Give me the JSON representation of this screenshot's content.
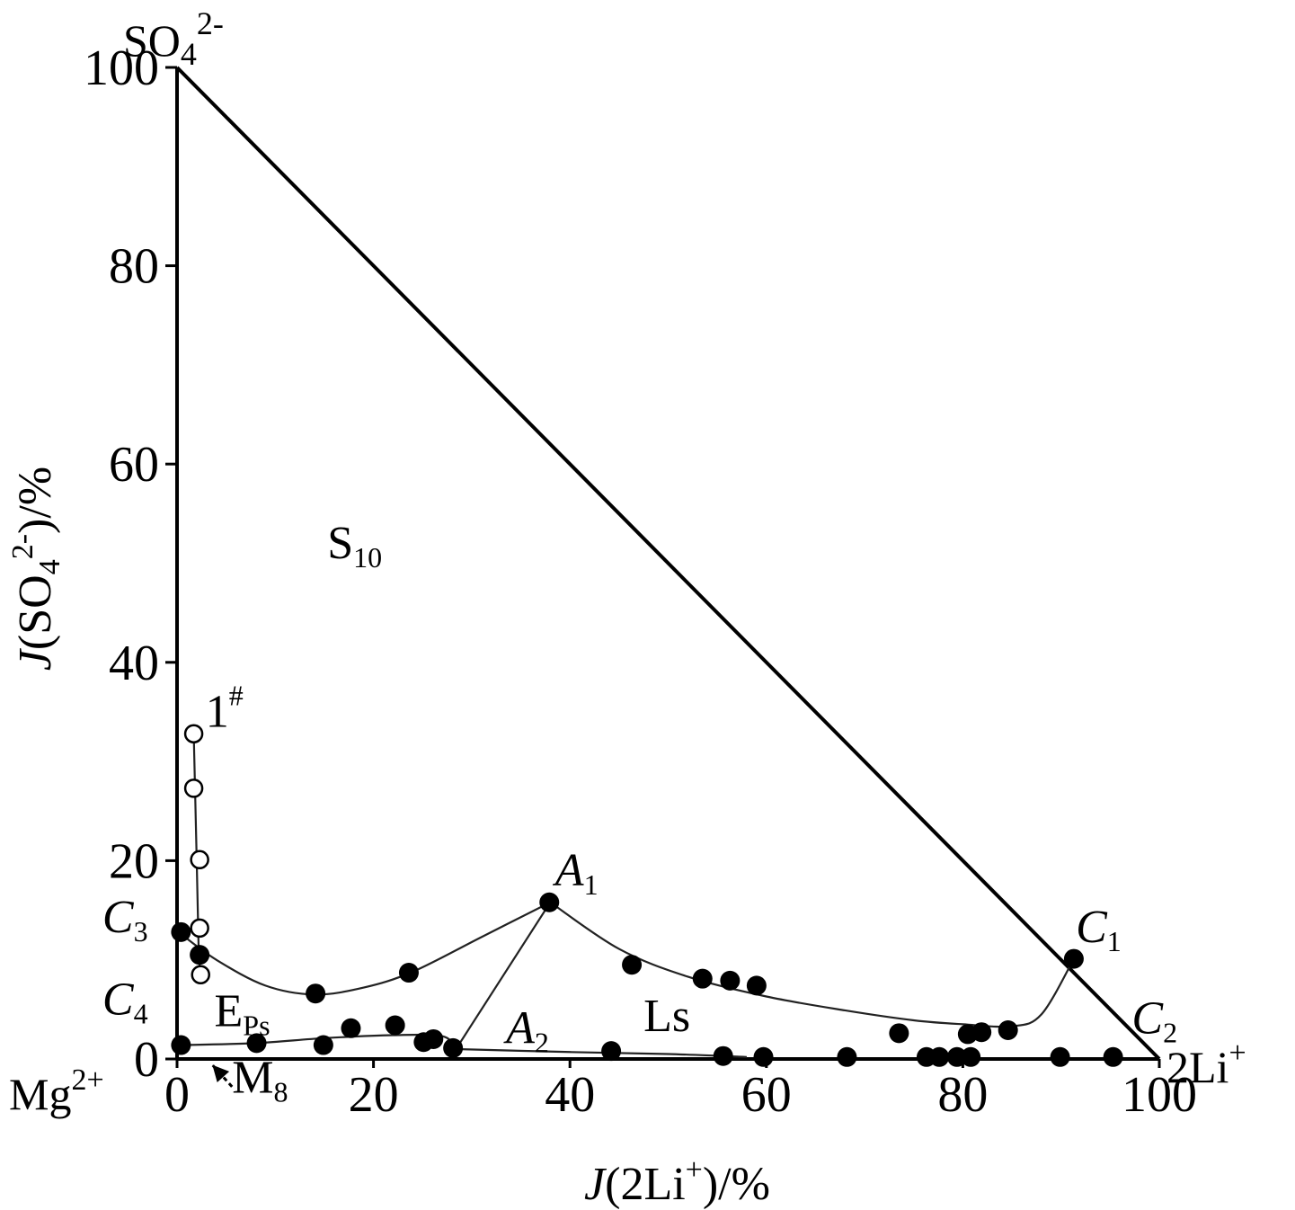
{
  "chart_data": {
    "type": "scatter",
    "xlabel": {
      "prefix": "J",
      "text": "(2Li",
      "sup": "+",
      "suffix": ")/%"
    },
    "ylabel": {
      "prefix": "J",
      "text": "(SO",
      "sub": "4",
      "sup": "2-",
      "suffix": ")/%"
    },
    "xlim": [
      0,
      100
    ],
    "ylim": [
      0,
      100
    ],
    "xticks": [
      "0",
      "20",
      "40",
      "60",
      "80",
      "100"
    ],
    "yticks": [
      "0",
      "20",
      "40",
      "60",
      "80",
      "100"
    ],
    "corners": {
      "top": {
        "base": "SO",
        "sub": "4",
        "sup": "2-"
      },
      "left": {
        "base": "Mg",
        "sup": "2+"
      },
      "right": {
        "base": "2Li",
        "sup": "+"
      }
    },
    "annotations": [
      {
        "id": "A1",
        "base": "A",
        "sub": "1",
        "italic": true,
        "x": 38.5,
        "y": 17.5
      },
      {
        "id": "A2",
        "base": "A",
        "sub": "2",
        "italic": true,
        "x": 33.5,
        "y": 1.6
      },
      {
        "id": "C1",
        "base": "C",
        "sub": "1",
        "italic": true,
        "x": 91.5,
        "y": 11.8
      },
      {
        "id": "C2",
        "base": "C",
        "sub": "2",
        "italic": true,
        "x": 97.2,
        "y": 2.6
      },
      {
        "id": "C3",
        "base": "C",
        "sub": "3",
        "italic": true,
        "x": -7.6,
        "y": 12.8
      },
      {
        "id": "C4",
        "base": "C",
        "sub": "4",
        "italic": true,
        "x": -7.6,
        "y": 4.5
      },
      {
        "id": "S10",
        "base": "S",
        "sub": "10",
        "italic": false,
        "x": 15.3,
        "y": 50.5
      },
      {
        "id": "EPs",
        "base": "E",
        "sub": "Ps",
        "italic": false,
        "x": 3.8,
        "y": 3.3
      },
      {
        "id": "Ls",
        "base": "Ls",
        "sub": "",
        "italic": false,
        "x": 47.5,
        "y": 2.8
      },
      {
        "id": "one",
        "base": "1",
        "sup": "#",
        "italic": false,
        "x": 2.9,
        "y": 33.5
      },
      {
        "id": "M8",
        "base": "M",
        "sub": "8",
        "italic": false,
        "x": 5.6,
        "y": -3.4
      }
    ],
    "series": [
      {
        "marker": "open-circle",
        "points": [
          [
            1.7,
            32.8
          ],
          [
            1.7,
            27.3
          ],
          [
            2.3,
            20.1
          ],
          [
            2.3,
            13.2
          ],
          [
            2.4,
            8.5
          ]
        ]
      },
      {
        "marker": "filled-circle",
        "points": [
          [
            0.4,
            12.8
          ],
          [
            2.3,
            10.5
          ],
          [
            14.1,
            6.6
          ],
          [
            23.6,
            8.7
          ],
          [
            37.9,
            15.8
          ],
          [
            46.3,
            9.5
          ],
          [
            53.5,
            8.1
          ],
          [
            56.3,
            7.9
          ],
          [
            59.0,
            7.4
          ],
          [
            91.3,
            10.1
          ],
          [
            73.5,
            2.6
          ],
          [
            80.5,
            2.5
          ],
          [
            81.9,
            2.7
          ],
          [
            84.6,
            2.9
          ],
          [
            0.4,
            1.4
          ],
          [
            8.1,
            1.6
          ],
          [
            14.9,
            1.4
          ],
          [
            17.7,
            3.1
          ],
          [
            22.2,
            3.4
          ],
          [
            25.1,
            1.7
          ],
          [
            26.1,
            2.0
          ],
          [
            28.1,
            1.1
          ],
          [
            44.2,
            0.8
          ],
          [
            55.6,
            0.3
          ],
          [
            59.7,
            0.2
          ],
          [
            68.2,
            0.2
          ],
          [
            76.3,
            0.2
          ],
          [
            77.6,
            0.2
          ],
          [
            79.4,
            0.2
          ],
          [
            80.8,
            0.2
          ],
          [
            89.9,
            0.2
          ],
          [
            95.3,
            0.2
          ]
        ]
      }
    ],
    "curves": [
      [
        [
          0.4,
          12.6
        ],
        [
          4,
          10
        ],
        [
          9,
          7.4
        ],
        [
          14,
          6.5
        ],
        [
          19,
          7.2
        ],
        [
          24,
          8.8
        ],
        [
          31,
          12.3
        ],
        [
          38,
          15.8
        ]
      ],
      [
        [
          38,
          15.8
        ],
        [
          45,
          11.1
        ],
        [
          52,
          8.3
        ],
        [
          60,
          6.3
        ],
        [
          68,
          4.9
        ],
        [
          75,
          3.9
        ],
        [
          80,
          3.5
        ],
        [
          85,
          3.3
        ],
        [
          88,
          4.5
        ],
        [
          91.3,
          10.1
        ]
      ],
      [
        [
          0.4,
          1.4
        ],
        [
          8,
          1.6
        ],
        [
          15,
          2.1
        ],
        [
          22,
          2.4
        ],
        [
          27,
          2.3
        ],
        [
          28.4,
          1.0
        ]
      ],
      [
        [
          28.4,
          1.0
        ],
        [
          38,
          15.8
        ]
      ],
      [
        [
          28.4,
          1.0
        ],
        [
          40,
          0.7
        ],
        [
          50,
          0.5
        ],
        [
          58,
          0.2
        ]
      ],
      [
        [
          1.7,
          32.8
        ],
        [
          2.0,
          20.1
        ],
        [
          2.2,
          11.0
        ],
        [
          2.4,
          8.5
        ]
      ]
    ],
    "arrow": {
      "from": [
        5.6,
        -2.8
      ],
      "to": [
        3.6,
        -0.6
      ]
    }
  }
}
